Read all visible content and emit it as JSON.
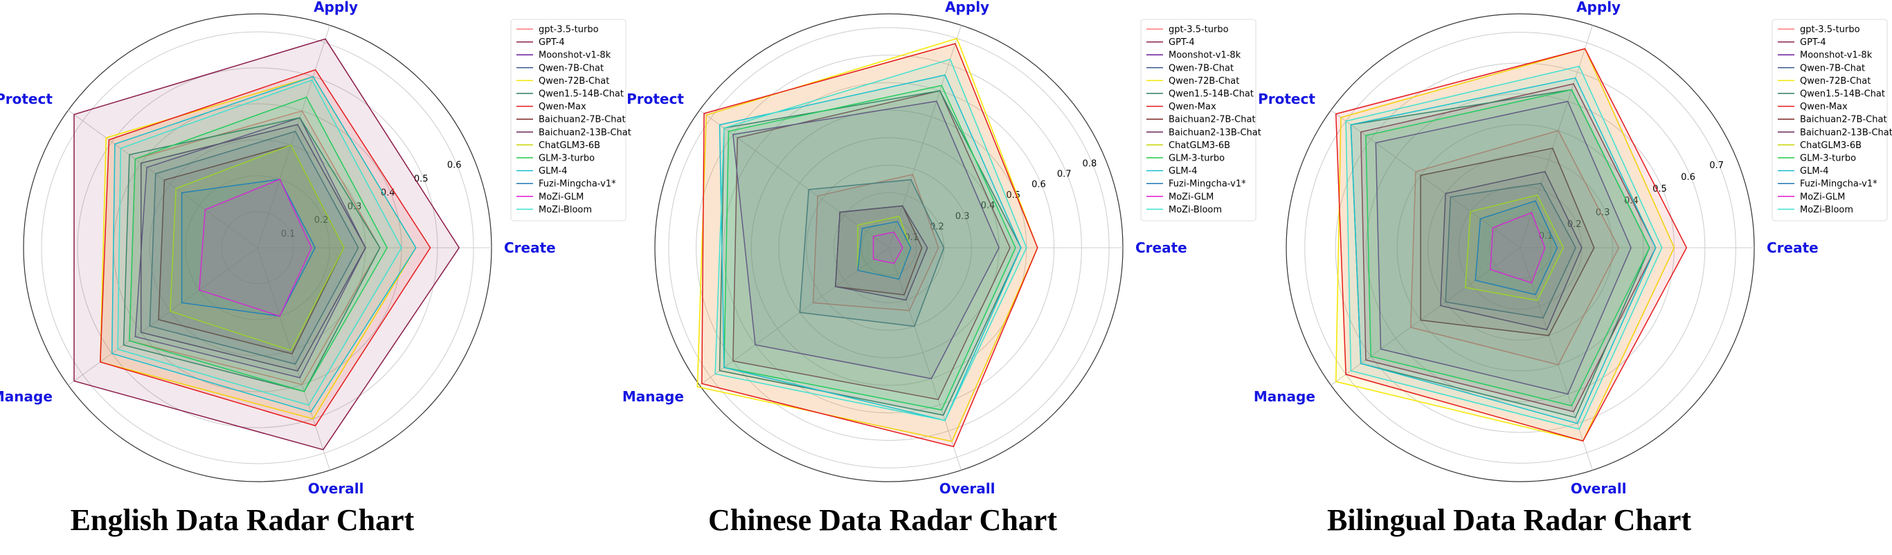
{
  "models": [
    {
      "name": "gpt-3.5-turbo",
      "color": "#ff7b7b"
    },
    {
      "name": "GPT-4",
      "color": "#8b1a4a"
    },
    {
      "name": "Moonshot-v1-8k",
      "color": "#6a1b9a"
    },
    {
      "name": "Qwen-7B-Chat",
      "color": "#3b5b8c"
    },
    {
      "name": "Qwen-72B-Chat",
      "color": "#f5e600"
    },
    {
      "name": "Qwen1.5-14B-Chat",
      "color": "#2e7d5b"
    },
    {
      "name": "Qwen-Max",
      "color": "#e41a1c"
    },
    {
      "name": "Baichuan2-7B-Chat",
      "color": "#7d2a2a"
    },
    {
      "name": "Baichuan2-13B-Chat",
      "color": "#6b2a5a"
    },
    {
      "name": "ChatGLM3-6B",
      "color": "#c8d400"
    },
    {
      "name": "GLM-3-turbo",
      "color": "#22cc44"
    },
    {
      "name": "GLM-4",
      "color": "#17becf"
    },
    {
      "name": "Fuzi-Mingcha-v1*",
      "color": "#1f77b4"
    },
    {
      "name": "MoZi-GLM",
      "color": "#e01ad0"
    },
    {
      "name": "MoZi-Bloom",
      "color": "#40e0d0"
    }
  ],
  "chart_data": [
    {
      "type": "radar",
      "title": "English Data Radar Chart",
      "axes": [
        "Apply",
        "Create",
        "Overall",
        "Manage",
        "Protect"
      ],
      "r_ticks": [
        "0.1",
        "0.2",
        "0.3",
        "0.4",
        "0.5",
        "0.6"
      ],
      "rmax": 0.65,
      "series": [
        {
          "name": "gpt-3.5-turbo",
          "values": [
            0.4,
            0.34,
            0.4,
            0.44,
            0.42
          ]
        },
        {
          "name": "GPT-4",
          "values": [
            0.61,
            0.56,
            0.59,
            0.63,
            0.63
          ]
        },
        {
          "name": "Moonshot-v1-8k",
          "values": [
            0.38,
            0.3,
            0.38,
            0.42,
            0.38
          ]
        },
        {
          "name": "Qwen-7B-Chat",
          "values": [
            0.34,
            0.28,
            0.34,
            0.37,
            0.35
          ]
        },
        {
          "name": "Qwen-72B-Chat",
          "values": [
            0.5,
            0.44,
            0.5,
            0.54,
            0.52
          ]
        },
        {
          "name": "Qwen1.5-14B-Chat",
          "values": [
            0.38,
            0.34,
            0.42,
            0.46,
            0.44
          ]
        },
        {
          "name": "Qwen-Max",
          "values": [
            0.52,
            0.48,
            0.52,
            0.54,
            0.51
          ]
        },
        {
          "name": "Baichuan2-7B-Chat",
          "values": [
            0.3,
            0.24,
            0.31,
            0.34,
            0.32
          ]
        },
        {
          "name": "Baichuan2-13B-Chat",
          "values": [
            0.36,
            0.3,
            0.36,
            0.4,
            0.4
          ]
        },
        {
          "name": "ChatGLM3-6B",
          "values": [
            0.3,
            0.24,
            0.3,
            0.3,
            0.28
          ]
        },
        {
          "name": "GLM-3-turbo",
          "values": [
            0.44,
            0.36,
            0.42,
            0.44,
            0.42
          ]
        },
        {
          "name": "GLM-4",
          "values": [
            0.5,
            0.44,
            0.48,
            0.5,
            0.49
          ]
        },
        {
          "name": "Fuzi-Mingcha-v1*",
          "values": [
            0.2,
            0.16,
            0.2,
            0.26,
            0.26
          ]
        },
        {
          "name": "MoZi-GLM",
          "values": [
            0.2,
            0.15,
            0.2,
            0.2,
            0.18
          ]
        },
        {
          "name": "MoZi-Bloom",
          "values": [
            0.49,
            0.4,
            0.46,
            0.48,
            0.47
          ]
        }
      ]
    },
    {
      "type": "radar",
      "title": "Chinese Data Radar Chart",
      "axes": [
        "Apply",
        "Create",
        "Overall",
        "Manage",
        "Protect"
      ],
      "r_ticks": [
        "0.1",
        "0.2",
        "0.3",
        "0.4",
        "0.5",
        "0.6",
        "0.7",
        "0.8"
      ],
      "rmax": 0.85,
      "series": [
        {
          "name": "gpt-3.5-turbo",
          "values": [
            0.28,
            0.18,
            0.24,
            0.34,
            0.32
          ]
        },
        {
          "name": "GPT-4",
          "values": [
            0.6,
            0.44,
            0.58,
            0.7,
            0.68
          ]
        },
        {
          "name": "Moonshot-v1-8k",
          "values": [
            0.56,
            0.4,
            0.5,
            0.6,
            0.7
          ]
        },
        {
          "name": "Qwen-7B-Chat",
          "values": [
            0.26,
            0.2,
            0.3,
            0.4,
            0.36
          ]
        },
        {
          "name": "Qwen-72B-Chat",
          "values": [
            0.8,
            0.54,
            0.74,
            0.86,
            0.82
          ]
        },
        {
          "name": "Qwen1.5-14B-Chat",
          "values": [
            0.6,
            0.48,
            0.64,
            0.76,
            0.74
          ]
        },
        {
          "name": "Qwen-Max",
          "values": [
            0.78,
            0.54,
            0.76,
            0.84,
            0.83
          ]
        },
        {
          "name": "Baichuan2-7B-Chat",
          "values": [
            0.16,
            0.12,
            0.18,
            0.24,
            0.22
          ]
        },
        {
          "name": "Baichuan2-13B-Chat",
          "values": [
            0.16,
            0.14,
            0.2,
            0.24,
            0.22
          ]
        },
        {
          "name": "ChatGLM3-6B",
          "values": [
            0.12,
            0.08,
            0.12,
            0.14,
            0.14
          ]
        },
        {
          "name": "GLM-3-turbo",
          "values": [
            0.62,
            0.46,
            0.62,
            0.74,
            0.72
          ]
        },
        {
          "name": "GLM-4",
          "values": [
            0.66,
            0.48,
            0.66,
            0.74,
            0.76
          ]
        },
        {
          "name": "Fuzi-Mingcha-v1*",
          "values": [
            0.1,
            0.08,
            0.12,
            0.14,
            0.12
          ]
        },
        {
          "name": "MoZi-GLM",
          "values": [
            0.06,
            0.05,
            0.06,
            0.07,
            0.07
          ]
        },
        {
          "name": "MoZi-Bloom",
          "values": [
            0.72,
            0.5,
            0.66,
            0.78,
            0.74
          ]
        }
      ]
    },
    {
      "type": "radar",
      "title": "Bilingual Data Radar Chart",
      "axes": [
        "Apply",
        "Create",
        "Overall",
        "Manage",
        "Protect"
      ],
      "r_ticks": [
        "0.1",
        "0.2",
        "0.3",
        "0.4",
        "0.5",
        "0.6",
        "0.7"
      ],
      "rmax": 0.76,
      "series": [
        {
          "name": "gpt-3.5-turbo",
          "values": [
            0.4,
            0.32,
            0.4,
            0.44,
            0.42
          ]
        },
        {
          "name": "GPT-4",
          "values": [
            0.56,
            0.44,
            0.56,
            0.62,
            0.64
          ]
        },
        {
          "name": "Moonshot-v1-8k",
          "values": [
            0.5,
            0.36,
            0.5,
            0.56,
            0.58
          ]
        },
        {
          "name": "Qwen-7B-Chat",
          "values": [
            0.22,
            0.18,
            0.24,
            0.3,
            0.28
          ]
        },
        {
          "name": "Qwen-72B-Chat",
          "values": [
            0.68,
            0.5,
            0.66,
            0.74,
            0.72
          ]
        },
        {
          "name": "Qwen1.5-14B-Chat",
          "values": [
            0.54,
            0.42,
            0.58,
            0.64,
            0.68
          ]
        },
        {
          "name": "Qwen-Max",
          "values": [
            0.68,
            0.54,
            0.66,
            0.7,
            0.74
          ]
        },
        {
          "name": "Baichuan2-7B-Chat",
          "values": [
            0.34,
            0.24,
            0.3,
            0.4,
            0.4
          ]
        },
        {
          "name": "Baichuan2-13B-Chat",
          "values": [
            0.26,
            0.2,
            0.28,
            0.32,
            0.3
          ]
        },
        {
          "name": "ChatGLM3-6B",
          "values": [
            0.18,
            0.14,
            0.18,
            0.22,
            0.2
          ]
        },
        {
          "name": "GLM-3-turbo",
          "values": [
            0.54,
            0.42,
            0.54,
            0.6,
            0.62
          ]
        },
        {
          "name": "GLM-4",
          "values": [
            0.58,
            0.44,
            0.6,
            0.64,
            0.68
          ]
        },
        {
          "name": "Fuzi-Mingcha-v1*",
          "values": [
            0.16,
            0.12,
            0.16,
            0.18,
            0.16
          ]
        },
        {
          "name": "MoZi-GLM",
          "values": [
            0.12,
            0.08,
            0.12,
            0.12,
            0.11
          ]
        },
        {
          "name": "MoZi-Bloom",
          "values": [
            0.62,
            0.46,
            0.62,
            0.68,
            0.7
          ]
        }
      ]
    }
  ]
}
